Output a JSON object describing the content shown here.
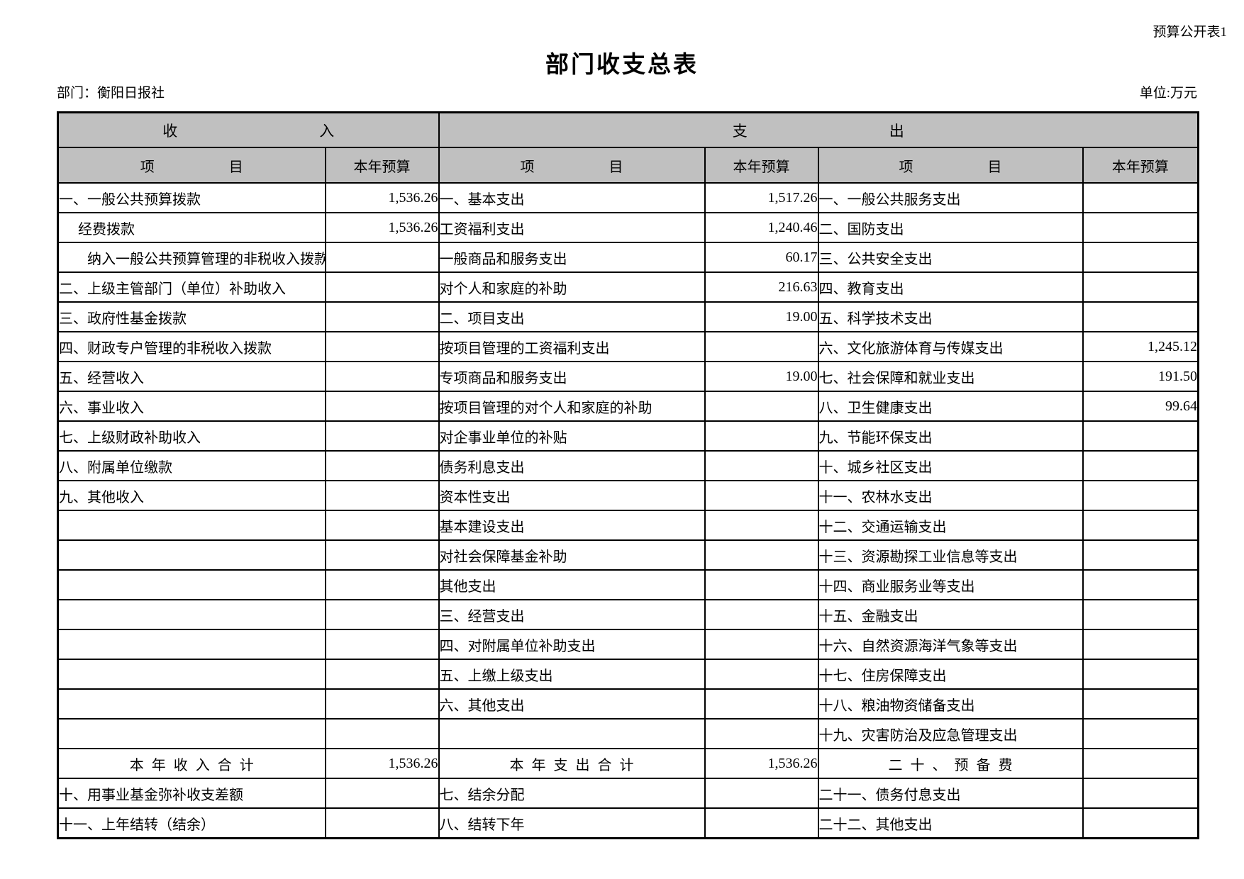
{
  "page": {
    "doc_label": "预算公开表1",
    "title": "部门收支总表",
    "department": "部门：衡阳日报社",
    "unit": "单位:万元"
  },
  "table": {
    "group_headers": {
      "income": [
        "收",
        "入"
      ],
      "expenditure": [
        "支",
        "出"
      ]
    },
    "column_headers": {
      "item": [
        "项",
        "目"
      ],
      "budget": "本年预算"
    },
    "rows": [
      {
        "c1": "一、一般公共预算拨款",
        "i1": 0,
        "v1": "1,536.26",
        "c2": "一、基本支出",
        "v2": "1,517.26",
        "c3": "一、一般公共服务支出",
        "v3": ""
      },
      {
        "c1": "经费拨款",
        "i1": 1,
        "v1": "1,536.26",
        "c2": "工资福利支出",
        "v2": "1,240.46",
        "c3": "二、国防支出",
        "v3": ""
      },
      {
        "c1": "纳入一般公共预算管理的非税收入拨款",
        "i1": 2,
        "v1": "",
        "c2": "一般商品和服务支出",
        "v2": "60.17",
        "c3": "三、公共安全支出",
        "v3": ""
      },
      {
        "c1": "二、上级主管部门（单位）补助收入",
        "i1": 0,
        "v1": "",
        "c2": "对个人和家庭的补助",
        "v2": "216.63",
        "c3": "四、教育支出",
        "v3": ""
      },
      {
        "c1": "三、政府性基金拨款",
        "i1": 0,
        "v1": "",
        "c2": "二、项目支出",
        "v2": "19.00",
        "c3": "五、科学技术支出",
        "v3": ""
      },
      {
        "c1": "四、财政专户管理的非税收入拨款",
        "i1": 0,
        "v1": "",
        "c2": "按项目管理的工资福利支出",
        "v2": "",
        "c3": "六、文化旅游体育与传媒支出",
        "v3": "1,245.12"
      },
      {
        "c1": "五、经营收入",
        "i1": 0,
        "v1": "",
        "c2": "专项商品和服务支出",
        "v2": "19.00",
        "c3": "七、社会保障和就业支出",
        "v3": "191.50"
      },
      {
        "c1": "六、事业收入",
        "i1": 0,
        "v1": "",
        "c2": "按项目管理的对个人和家庭的补助",
        "v2": "",
        "c3": "八、卫生健康支出",
        "v3": "99.64"
      },
      {
        "c1": "七、上级财政补助收入",
        "i1": 0,
        "v1": "",
        "c2": "对企事业单位的补贴",
        "v2": "",
        "c3": "九、节能环保支出",
        "v3": ""
      },
      {
        "c1": "八、附属单位缴款",
        "i1": 0,
        "v1": "",
        "c2": "债务利息支出",
        "v2": "",
        "c3": "十、城乡社区支出",
        "v3": ""
      },
      {
        "c1": "九、其他收入",
        "i1": 0,
        "v1": "",
        "c2": "资本性支出",
        "v2": "",
        "c3": "十一、农林水支出",
        "v3": ""
      },
      {
        "c1": "",
        "i1": 0,
        "v1": "",
        "c2": "基本建设支出",
        "v2": "",
        "c3": "十二、交通运输支出",
        "v3": ""
      },
      {
        "c1": "",
        "i1": 0,
        "v1": "",
        "c2": "对社会保障基金补助",
        "v2": "",
        "c3": "十三、资源勘探工业信息等支出",
        "v3": ""
      },
      {
        "c1": "",
        "i1": 0,
        "v1": "",
        "c2": "其他支出",
        "v2": "",
        "c3": "十四、商业服务业等支出",
        "v3": ""
      },
      {
        "c1": "",
        "i1": 0,
        "v1": "",
        "c2": "三、经营支出",
        "v2": "",
        "c3": "十五、金融支出",
        "v3": ""
      },
      {
        "c1": "",
        "i1": 0,
        "v1": "",
        "c2": "四、对附属单位补助支出",
        "v2": "",
        "c3": "十六、自然资源海洋气象等支出",
        "v3": ""
      },
      {
        "c1": "",
        "i1": 0,
        "v1": "",
        "c2": "五、上缴上级支出",
        "v2": "",
        "c3": "十七、住房保障支出",
        "v3": ""
      },
      {
        "c1": "",
        "i1": 0,
        "v1": "",
        "c2": "六、其他支出",
        "v2": "",
        "c3": "十八、粮油物资储备支出",
        "v3": ""
      },
      {
        "c1": "",
        "i1": 0,
        "v1": "",
        "c2": "",
        "v2": "",
        "c3": "十九、灾害防治及应急管理支出",
        "v3": ""
      },
      {
        "type": "total",
        "c1": "本年收入合计",
        "i1": 0,
        "v1": "1,536.26",
        "c2": "本年支出合计",
        "v2": "1,536.26",
        "c3": "二十、预备费",
        "v3": ""
      },
      {
        "c1": "十、用事业基金弥补收支差额",
        "i1": 0,
        "v1": "",
        "c2": "七、结余分配",
        "v2": "",
        "c3": "二十一、债务付息支出",
        "v3": ""
      },
      {
        "c1": "十一、上年结转（结余）",
        "i1": 0,
        "v1": "",
        "c2": "八、结转下年",
        "v2": "",
        "c3": "二十二、其他支出",
        "v3": ""
      }
    ]
  }
}
